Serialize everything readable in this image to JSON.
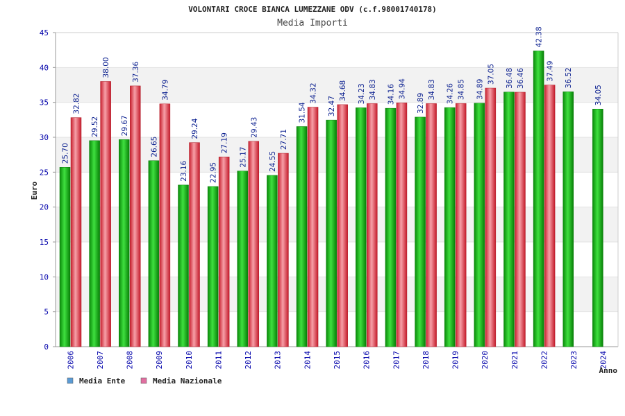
{
  "chart_data": {
    "type": "bar",
    "title": "VOLONTARI CROCE BIANCA LUMEZZANE ODV (c.f.98001740178)",
    "subtitle": "Media Importi",
    "xlabel": "Anno",
    "ylabel": "Euro",
    "ylim": [
      0,
      45
    ],
    "yticks": [
      0,
      5,
      10,
      15,
      20,
      25,
      30,
      35,
      40,
      45
    ],
    "categories": [
      "2006",
      "2007",
      "2008",
      "2009",
      "2010",
      "2011",
      "2012",
      "2013",
      "2014",
      "2015",
      "2016",
      "2017",
      "2018",
      "2019",
      "2020",
      "2021",
      "2022",
      "2023",
      "2024"
    ],
    "series": [
      {
        "name": "Media Ente",
        "color": "#14b514",
        "legend_color": "#5b9bd5",
        "values": [
          25.7,
          29.52,
          29.67,
          26.65,
          23.16,
          22.95,
          25.17,
          24.55,
          31.54,
          32.47,
          34.23,
          34.16,
          32.89,
          34.26,
          34.89,
          36.48,
          42.38,
          36.52,
          34.05
        ],
        "labels": [
          "25.70",
          "29.52",
          "29.67",
          "26.65",
          "23.16",
          "22.95",
          "25.17",
          "24.55",
          "31.54",
          "32.47",
          "34.23",
          "34.16",
          "32.89",
          "34.26",
          "34.89",
          "36.48",
          "42.38",
          "36.52",
          "34.05"
        ]
      },
      {
        "name": "Media Nazionale",
        "color": "#e8404f",
        "legend_color": "#e06fa0",
        "values": [
          32.82,
          38.0,
          37.36,
          34.79,
          29.24,
          27.19,
          29.43,
          27.71,
          34.32,
          34.68,
          34.83,
          34.94,
          34.83,
          34.85,
          37.05,
          36.46,
          37.49,
          null,
          null
        ],
        "labels": [
          "32.82",
          "38.00",
          "37.36",
          "34.79",
          "29.24",
          "27.19",
          "29.43",
          "27.71",
          "34.32",
          "34.68",
          "34.83",
          "34.94",
          "34.83",
          "34.85",
          "37.05",
          "36.46",
          "37.49",
          "",
          ""
        ]
      }
    ],
    "grid": true,
    "legend_position": "bottom-left"
  }
}
